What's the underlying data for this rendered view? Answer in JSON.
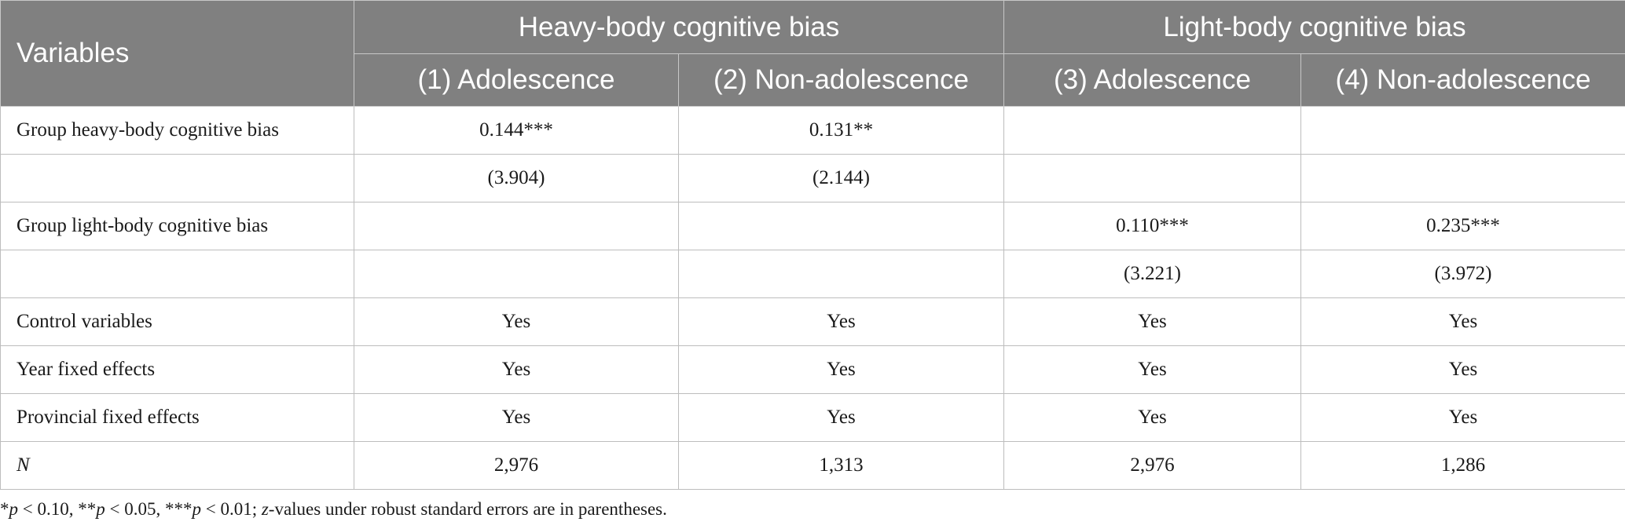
{
  "table": {
    "variables_header": "Variables",
    "groups": [
      "Heavy-body cognitive bias",
      "Light-body cognitive bias"
    ],
    "models": [
      "(1) Adolescence",
      "(2) Non-adolescence",
      "(3) Adolescence",
      "(4) Non-adolescence"
    ],
    "rows": [
      {
        "label": "Group heavy-body cognitive bias",
        "cells": [
          "0.144***",
          "0.131**",
          "",
          ""
        ]
      },
      {
        "label": "",
        "cells": [
          "(3.904)",
          "(2.144)",
          "",
          ""
        ]
      },
      {
        "label": "Group light-body cognitive bias",
        "cells": [
          "",
          "",
          "0.110***",
          "0.235***"
        ]
      },
      {
        "label": "",
        "cells": [
          "",
          "",
          "(3.221)",
          "(3.972)"
        ]
      },
      {
        "label": "Control variables",
        "cells": [
          "Yes",
          "Yes",
          "Yes",
          "Yes"
        ]
      },
      {
        "label": "Year fixed effects",
        "cells": [
          "Yes",
          "Yes",
          "Yes",
          "Yes"
        ]
      },
      {
        "label": "Provincial fixed effects",
        "cells": [
          "Yes",
          "Yes",
          "Yes",
          "Yes"
        ]
      },
      {
        "label": "N",
        "cells": [
          "2,976",
          "1,313",
          "2,976",
          "1,286"
        ]
      }
    ]
  },
  "footnote": {
    "p1_star": "*",
    "p1_var": "p",
    "p1_rest": " < 0.10, ",
    "p2_star": "**",
    "p2_var": "p",
    "p2_rest": " < 0.05, ",
    "p3_star": "***",
    "p3_var": "p",
    "p3_rest": " < 0.01; ",
    "z_var": "z",
    "tail": "-values under robust standard errors are in parentheses."
  }
}
